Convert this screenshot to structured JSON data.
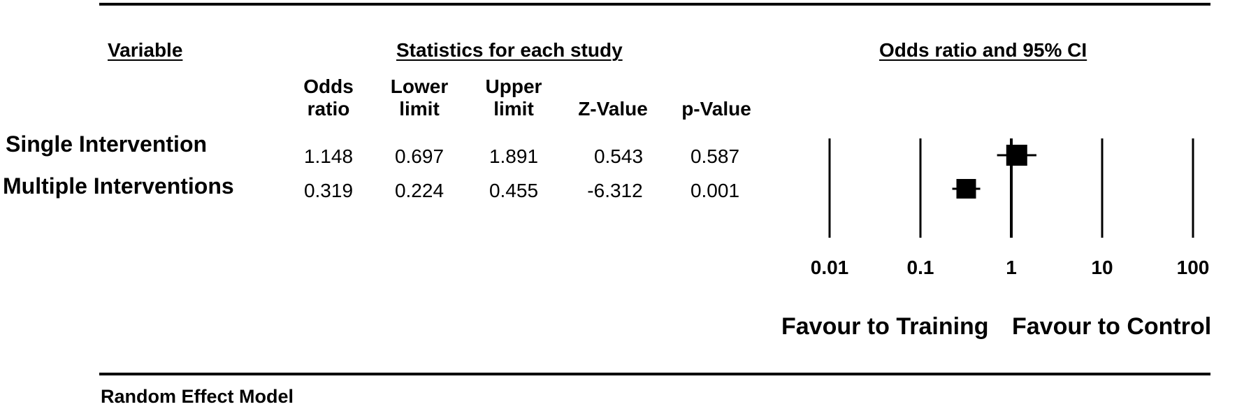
{
  "headers": {
    "variable": "Variable",
    "statistics": "Statistics for each study",
    "odds_ci": "Odds ratio and 95% CI"
  },
  "columns": {
    "odds_ratio": [
      "Odds",
      "ratio"
    ],
    "lower_limit": [
      "Lower",
      "limit"
    ],
    "upper_limit": [
      "Upper",
      "limit"
    ],
    "z_value": "Z-Value",
    "p_value": "p-Value"
  },
  "rows": [
    {
      "label": "Single Intervention",
      "odds_ratio": "1.148",
      "lower": "0.697",
      "upper": "1.891",
      "z": "0.543",
      "p": "0.587"
    },
    {
      "label": "Multiple Interventions",
      "odds_ratio": "0.319",
      "lower": "0.224",
      "upper": "0.455",
      "z": "-6.312",
      "p": "0.001"
    }
  ],
  "footer": {
    "favour_left": "Favour to Training",
    "favour_right": "Favour to Control",
    "model": "Random Effect Model"
  },
  "chart_data": {
    "type": "scatter",
    "scale": "log",
    "xlim": [
      0.01,
      100
    ],
    "ticks": [
      0.01,
      0.1,
      1,
      10,
      100
    ],
    "tick_labels": [
      "0.01",
      "0.1",
      "1",
      "10",
      "100"
    ],
    "reference_line": 1,
    "series": [
      {
        "category": "Single Intervention",
        "estimate": 1.148,
        "lower": 0.697,
        "upper": 1.891
      },
      {
        "category": "Multiple Interventions",
        "estimate": 0.319,
        "lower": 0.224,
        "upper": 0.455
      }
    ],
    "xlabel": "",
    "grid": false
  }
}
